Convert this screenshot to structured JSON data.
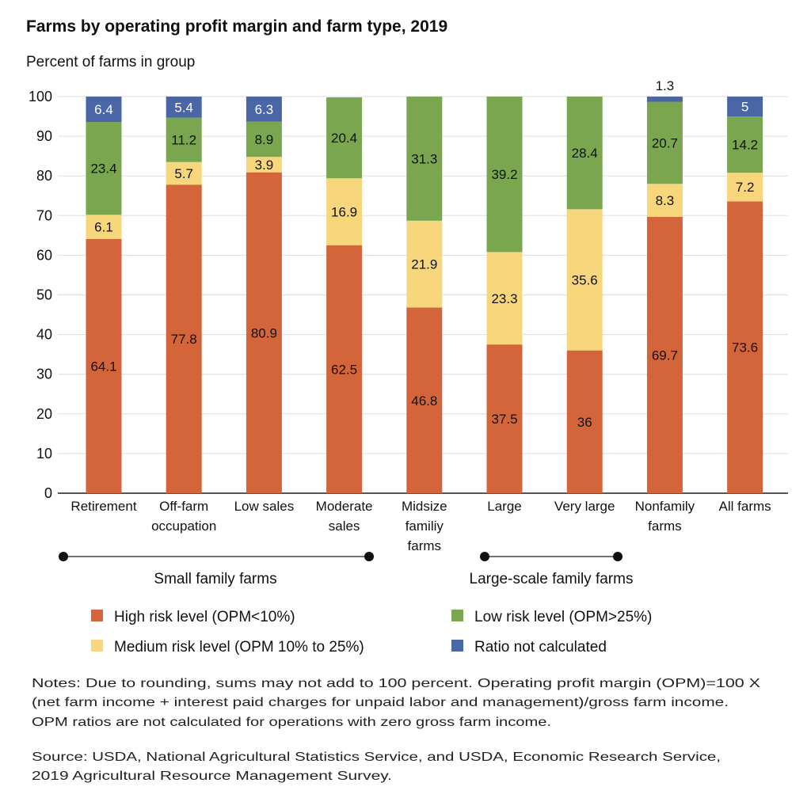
{
  "chart_data": {
    "type": "bar",
    "stacked": true,
    "title": "Farms by operating profit margin and farm type, 2019",
    "ylabel": "Percent of farms in group",
    "ylim": [
      0,
      100
    ],
    "yticks": [
      0,
      10,
      20,
      30,
      40,
      50,
      60,
      70,
      80,
      90,
      100
    ],
    "grid": true,
    "categories": [
      [
        "Retirement"
      ],
      [
        "Off-farm",
        "occupation"
      ],
      [
        "Low sales"
      ],
      [
        "Moderate",
        "sales"
      ],
      [
        "Midsize",
        "familiy",
        "farms"
      ],
      [
        "Large"
      ],
      [
        "Very large"
      ],
      [
        "Nonfamily",
        "farms"
      ],
      [
        "All farms"
      ]
    ],
    "series": [
      {
        "name": "High risk level (OPM<10%)",
        "color": "#d4653a",
        "values": [
          64.1,
          77.8,
          80.9,
          62.5,
          46.8,
          37.5,
          36,
          69.7,
          73.6
        ]
      },
      {
        "name": "Medium risk level (OPM 10% to 25%)",
        "color": "#f7d67c",
        "values": [
          6.1,
          5.7,
          3.9,
          16.9,
          21.9,
          23.3,
          35.6,
          8.3,
          7.2
        ]
      },
      {
        "name": "Low risk level (OPM>25%)",
        "color": "#79a64f",
        "values": [
          23.4,
          11.2,
          8.9,
          20.4,
          31.3,
          39.2,
          28.4,
          20.7,
          14.2
        ]
      },
      {
        "name": "Ratio not calculated",
        "color": "#4a66a6",
        "values": [
          6.4,
          5.4,
          6.3,
          null,
          null,
          null,
          null,
          1.3,
          5
        ]
      }
    ],
    "groups": [
      {
        "label": "Small family farms",
        "from": 0,
        "to": 3
      },
      {
        "label": "Large-scale family farms",
        "from": 5,
        "to": 6
      }
    ],
    "legend_position": "bottom"
  },
  "notes": [
    "Notes: Due to rounding, sums may not add to 100 percent. Operating profit margin (OPM)=100 X",
    "(net farm income + interest paid charges for unpaid labor and management)/gross farm income.",
    "OPM ratios are not calculated for operations with zero gross farm income."
  ],
  "source": [
    "Source: USDA, National Agricultural Statistics Service, and USDA, Economic Research Service,",
    "2019 Agricultural Resource Management Survey."
  ]
}
